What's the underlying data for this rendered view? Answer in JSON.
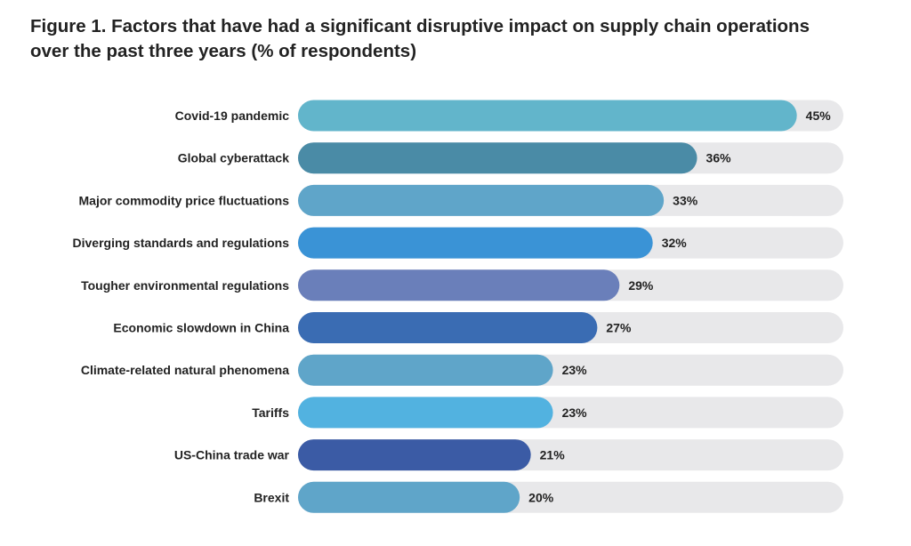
{
  "chart_data": {
    "type": "bar",
    "orientation": "horizontal",
    "title": "Figure 1. Factors that have had a significant disruptive impact on supply chain operations over the past three years (% of respondents)",
    "categories": [
      "Covid-19 pandemic",
      "Global cyberattack",
      "Major commodity price fluctuations",
      "Diverging standards and regulations",
      "Tougher environmental regulations",
      "Economic slowdown in China",
      "Climate-related natural phenomena",
      "Tariffs",
      "US-China trade war",
      "Brexit"
    ],
    "values": [
      45,
      36,
      33,
      32,
      29,
      27,
      23,
      23,
      21,
      20
    ],
    "value_labels": [
      "45%",
      "36%",
      "33%",
      "32%",
      "29%",
      "27%",
      "23%",
      "23%",
      "21%",
      "20%"
    ],
    "colors": [
      "#62b5cb",
      "#4a8ba6",
      "#5fa5c9",
      "#3a93d6",
      "#6a7fba",
      "#3a6cb3",
      "#5fa5c9",
      "#52b2e0",
      "#3b5ba5",
      "#5fa5c9"
    ],
    "track_color": "#e8e8ea",
    "xlim": [
      0,
      49.2
    ],
    "xlabel": "",
    "ylabel": "",
    "grid": false
  }
}
